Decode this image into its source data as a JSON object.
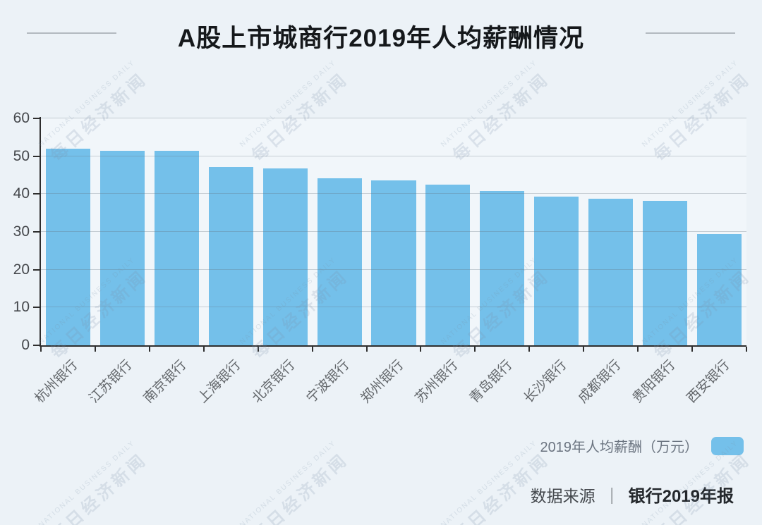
{
  "title": "A股上市城商行2019年人均薪酬情况",
  "watermark": {
    "line1": "NATIONAL BUSINESS DAILY",
    "line2": "每日经济新闻"
  },
  "legend": {
    "label": "2019年人均薪酬（万元）",
    "swatch_color": "#74c0ea"
  },
  "source": {
    "prefix": "数据来源",
    "separator": "｜",
    "value": "银行2019年报"
  },
  "chart_data": {
    "type": "bar",
    "title": "A股上市城商行2019年人均薪酬情况",
    "categories": [
      "杭州银行",
      "江苏银行",
      "南京银行",
      "上海银行",
      "北京银行",
      "宁波银行",
      "郑州银行",
      "苏州银行",
      "青岛银行",
      "长沙银行",
      "成都银行",
      "贵阳银行",
      "西安银行"
    ],
    "series": [
      {
        "name": "2019年人均薪酬（万元）",
        "values": [
          52.0,
          51.4,
          51.4,
          47.1,
          46.8,
          44.1,
          43.6,
          42.5,
          40.8,
          39.3,
          38.8,
          38.2,
          29.5
        ]
      }
    ],
    "xlabel": "",
    "ylabel": "",
    "ylim": [
      0,
      60
    ],
    "yticks": [
      0,
      10,
      20,
      30,
      40,
      50,
      60
    ],
    "grid": true,
    "legend_position": "bottom-right",
    "bar_color": "#74c0ea",
    "x_label_rotation": -45
  }
}
